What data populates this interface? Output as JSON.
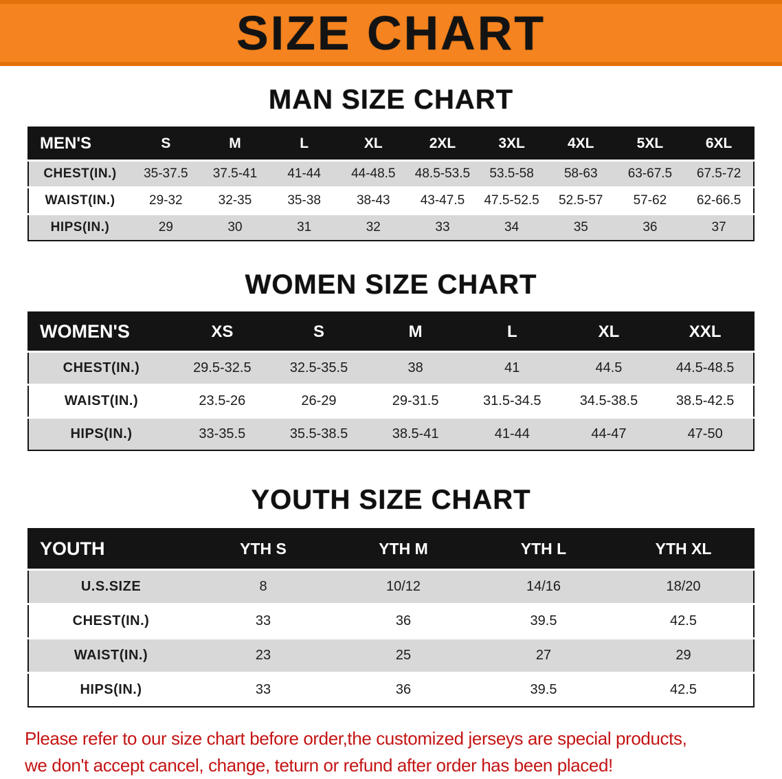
{
  "banner": {
    "title": "SIZE CHART"
  },
  "sections": [
    {
      "id": "men",
      "heading": "MAN SIZE CHART",
      "table": {
        "header": [
          "MEN'S",
          "S",
          "M",
          "L",
          "XL",
          "2XL",
          "3XL",
          "4XL",
          "5XL",
          "6XL"
        ],
        "rows": [
          [
            "CHEST(IN.)",
            "35-37.5",
            "37.5-41",
            "41-44",
            "44-48.5",
            "48.5-53.5",
            "53.5-58",
            "58-63",
            "63-67.5",
            "67.5-72"
          ],
          [
            "WAIST(IN.)",
            "29-32",
            "32-35",
            "35-38",
            "38-43",
            "43-47.5",
            "47.5-52.5",
            "52.5-57",
            "57-62",
            "62-66.5"
          ],
          [
            "HIPS(IN.)",
            "29",
            "30",
            "31",
            "32",
            "33",
            "34",
            "35",
            "36",
            "37"
          ]
        ]
      }
    },
    {
      "id": "women",
      "heading": "WOMEN SIZE CHART",
      "table": {
        "header": [
          "WOMEN'S",
          "XS",
          "S",
          "M",
          "L",
          "XL",
          "XXL"
        ],
        "rows": [
          [
            "CHEST(IN.)",
            "29.5-32.5",
            "32.5-35.5",
            "38",
            "41",
            "44.5",
            "44.5-48.5"
          ],
          [
            "WAIST(IN.)",
            "23.5-26",
            "26-29",
            "29-31.5",
            "31.5-34.5",
            "34.5-38.5",
            "38.5-42.5"
          ],
          [
            "HIPS(IN.)",
            "33-35.5",
            "35.5-38.5",
            "38.5-41",
            "41-44",
            "44-47",
            "47-50"
          ]
        ]
      }
    },
    {
      "id": "youth",
      "heading": "YOUTH SIZE CHART",
      "table": {
        "header": [
          "YOUTH",
          "YTH S",
          "YTH M",
          "YTH L",
          "YTH XL"
        ],
        "rows": [
          [
            "U.S.SIZE",
            "8",
            "10/12",
            "14/16",
            "18/20"
          ],
          [
            "CHEST(IN.)",
            "33",
            "36",
            "39.5",
            "42.5"
          ],
          [
            "WAIST(IN.)",
            "23",
            "25",
            "27",
            "29"
          ],
          [
            "HIPS(IN.)",
            "33",
            "36",
            "39.5",
            "42.5"
          ]
        ]
      }
    }
  ],
  "footer": {
    "line1": "Please refer to our size chart before order,the customized jerseys are special products,",
    "line2": "we don't accept cancel, change, teturn or refund after order has been placed!"
  },
  "colors": {
    "banner_bg": "#f5831f",
    "header_bg": "#141414",
    "row_alt_bg": "#d8d8d8",
    "footer_text": "#c41414"
  }
}
